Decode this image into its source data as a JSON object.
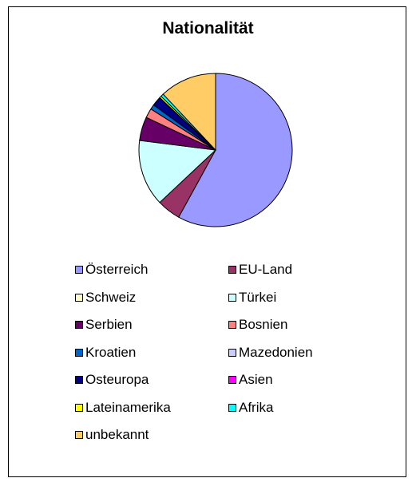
{
  "chart_data": {
    "type": "pie",
    "title": "Nationalität",
    "legend_position": "bottom",
    "categories": [
      "Österreich",
      "EU-Land",
      "Schweiz",
      "Türkei",
      "Serbien",
      "Bosnien",
      "Kroatien",
      "Mazedonien",
      "Osteuropa",
      "Asien",
      "Lateinamerika",
      "Afrika",
      "unbekannt"
    ],
    "values": [
      58,
      5,
      0,
      14,
      5,
      2,
      1,
      0,
      2,
      0,
      0.4,
      0.6,
      12
    ],
    "unit": "%",
    "colors": [
      "#9999ff",
      "#993366",
      "#ffffcc",
      "#ccffff",
      "#660066",
      "#ff8080",
      "#0066cc",
      "#ccccff",
      "#000080",
      "#ff00ff",
      "#ffff00",
      "#00ffff",
      "#ffcc66"
    ]
  }
}
